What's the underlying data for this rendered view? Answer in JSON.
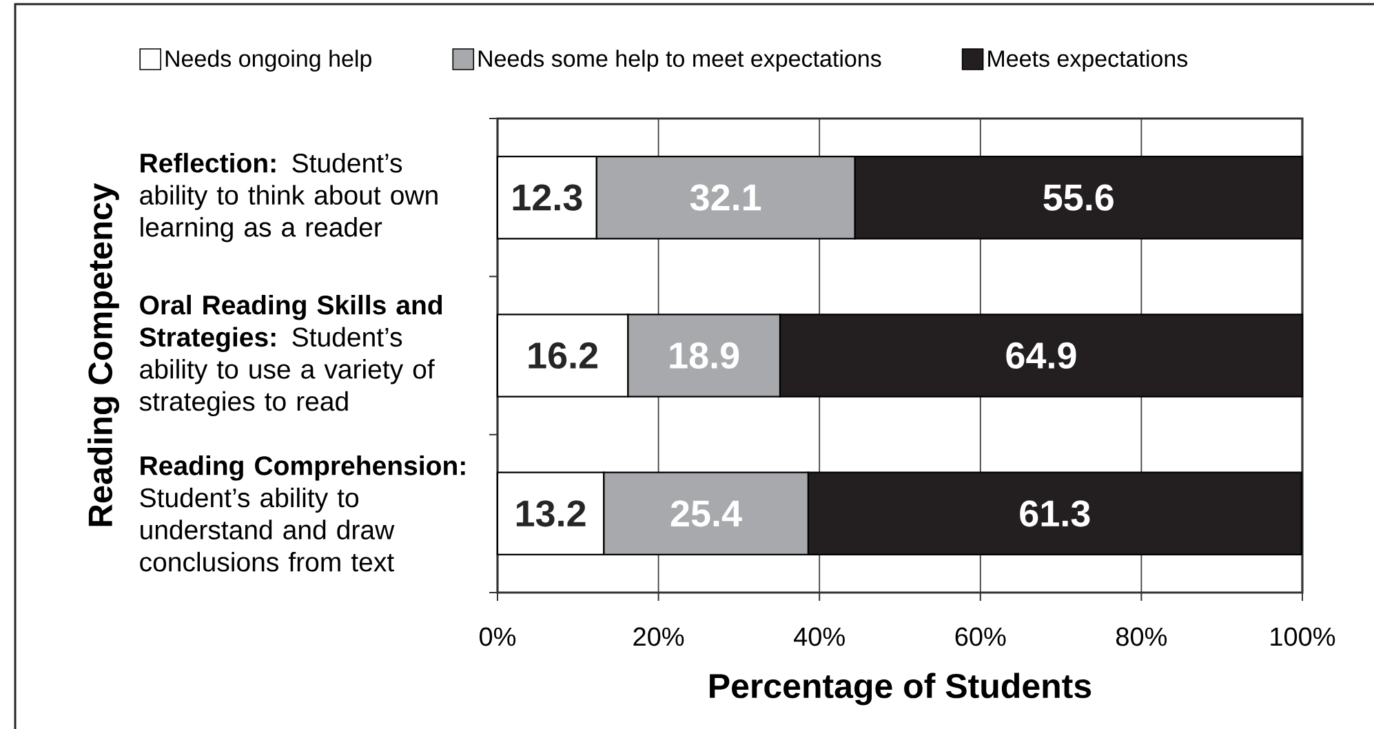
{
  "chart_data": {
    "type": "bar",
    "orientation": "horizontal",
    "stacked": true,
    "xlabel": "Percentage of Students",
    "ylabel": "Reading Competency",
    "categories": [
      "**Reflection:** Student’s ability to think about own learning as a reader",
      "**Oral Reading Skills and Strategies:** Student’s ability to use a variety of strategies to read",
      "**Reading Comprehension:** Student’s ability to understand and draw conclusions from text"
    ],
    "series": [
      {
        "name": "Needs ongoing help",
        "color": "#ffffff",
        "values": [
          12.3,
          16.2,
          13.2
        ]
      },
      {
        "name": "Needs some help to meet expectations",
        "color": "#a7a9ac",
        "values": [
          32.1,
          18.9,
          25.4
        ]
      },
      {
        "name": "Meets expectations",
        "color": "#231f20",
        "values": [
          55.6,
          64.9,
          61.3
        ]
      }
    ],
    "xlim": [
      0,
      100
    ],
    "xticks": [
      {
        "value": 0,
        "label": "0%"
      },
      {
        "value": 20,
        "label": "20%"
      },
      {
        "value": 40,
        "label": "40%"
      },
      {
        "value": 60,
        "label": "60%"
      },
      {
        "value": 80,
        "label": "80%"
      },
      {
        "value": 100,
        "label": "100%"
      }
    ],
    "grid": "x",
    "legend": "top",
    "data_labels": true
  }
}
